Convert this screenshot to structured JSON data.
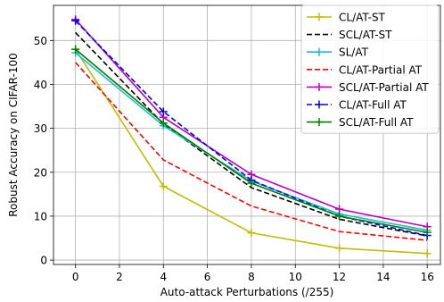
{
  "chart_data": {
    "type": "line",
    "xlabel": "Auto-attack Perturbations (/255)",
    "ylabel": "Robust Accuracy on CIFAR-100",
    "xlim": [
      -1,
      16.6
    ],
    "ylim": [
      -1,
      58
    ],
    "xticks": [
      0,
      2,
      4,
      6,
      8,
      10,
      12,
      14,
      16
    ],
    "yticks": [
      0,
      10,
      20,
      30,
      40,
      50
    ],
    "grid": true,
    "legend_position": "top-right",
    "x": [
      0,
      4,
      8,
      12,
      16
    ],
    "series": [
      {
        "name": "CL/AT-ST",
        "color": "#bfbf00",
        "dash": "solid",
        "marker": "plus",
        "values": [
          48.0,
          16.8,
          6.2,
          2.7,
          1.5
        ]
      },
      {
        "name": "SCL/AT-ST",
        "color": "#000000",
        "dash": "dashed",
        "marker": "none",
        "values": [
          51.8,
          31.0,
          16.5,
          9.3,
          5.5
        ]
      },
      {
        "name": "SL/AT",
        "color": "#17becf",
        "dash": "solid",
        "marker": "plus",
        "values": [
          47.2,
          30.6,
          18.0,
          10.5,
          6.8
        ]
      },
      {
        "name": "CL/AT-Partial AT",
        "color": "#ff0000",
        "dash": "dashed",
        "marker": "none",
        "values": [
          45.0,
          22.8,
          12.3,
          6.5,
          4.5
        ]
      },
      {
        "name": "SCL/AT-Partial AT",
        "color": "#bf00bf",
        "dash": "solid",
        "marker": "plus",
        "values": [
          54.8,
          32.5,
          19.5,
          11.6,
          7.6
        ]
      },
      {
        "name": "CL/AT-Full AT",
        "color": "#0000ff",
        "dash": "dashed",
        "marker": "plus",
        "values": [
          54.5,
          33.8,
          18.2,
          10.0,
          5.6
        ]
      },
      {
        "name": "SCL/AT-Full AT",
        "color": "#008000",
        "dash": "solid",
        "marker": "plus",
        "values": [
          48.0,
          31.2,
          17.5,
          10.0,
          6.3
        ]
      }
    ]
  }
}
